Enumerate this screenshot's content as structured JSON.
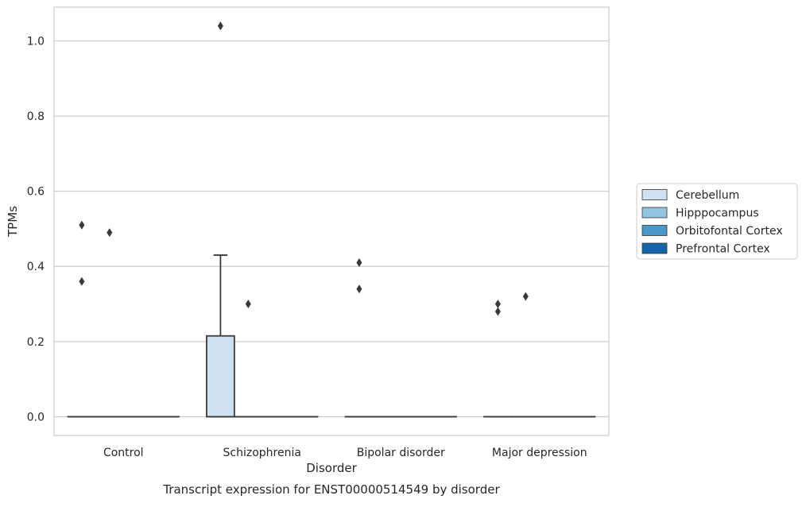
{
  "chart_data": {
    "type": "box",
    "caption": "Transcript expression for ENST00000514549 by disorder",
    "xlabel": "Disorder",
    "ylabel": "TPMs",
    "ylim": [
      -0.05,
      1.09
    ],
    "yticks": [
      0.0,
      0.2,
      0.4,
      0.6,
      0.8,
      1.0
    ],
    "ytick_labels": [
      "0.0",
      "0.2",
      "0.4",
      "0.6",
      "0.8",
      "1.0"
    ],
    "grid": "horizontal",
    "legend_position": "right",
    "categories": [
      "Control",
      "Schizophrenia",
      "Bipolar disorder",
      "Major depression"
    ],
    "series": [
      {
        "name": "Cerebellum",
        "color": "#d0e1f2",
        "boxes": [
          {
            "category": "Control",
            "q1": 0.0,
            "median": 0.0,
            "q3": 0.0,
            "whisker_low": 0.0,
            "whisker_high": 0.0,
            "outliers": [
              0.51,
              0.36
            ]
          },
          {
            "category": "Schizophrenia",
            "q1": 0.0,
            "median": 0.0,
            "q3": 0.215,
            "whisker_low": 0.0,
            "whisker_high": 0.43,
            "outliers": [
              1.04
            ]
          },
          {
            "category": "Bipolar disorder",
            "q1": 0.0,
            "median": 0.0,
            "q3": 0.0,
            "whisker_low": 0.0,
            "whisker_high": 0.0,
            "outliers": [
              0.41,
              0.34
            ]
          },
          {
            "category": "Major depression",
            "q1": 0.0,
            "median": 0.0,
            "q3": 0.0,
            "whisker_low": 0.0,
            "whisker_high": 0.0,
            "outliers": [
              0.3,
              0.28
            ]
          }
        ]
      },
      {
        "name": "Hipppocampus",
        "color": "#94c4df",
        "boxes": [
          {
            "category": "Control",
            "q1": 0.0,
            "median": 0.0,
            "q3": 0.0,
            "whisker_low": 0.0,
            "whisker_high": 0.0,
            "outliers": [
              0.49
            ]
          },
          {
            "category": "Schizophrenia",
            "q1": 0.0,
            "median": 0.0,
            "q3": 0.0,
            "whisker_low": 0.0,
            "whisker_high": 0.0,
            "outliers": [
              0.3
            ]
          },
          {
            "category": "Bipolar disorder",
            "q1": 0.0,
            "median": 0.0,
            "q3": 0.0,
            "whisker_low": 0.0,
            "whisker_high": 0.0,
            "outliers": []
          },
          {
            "category": "Major depression",
            "q1": 0.0,
            "median": 0.0,
            "q3": 0.0,
            "whisker_low": 0.0,
            "whisker_high": 0.0,
            "outliers": [
              0.32
            ]
          }
        ]
      },
      {
        "name": "Orbitofontal Cortex",
        "color": "#4a98c9",
        "boxes": [
          {
            "category": "Control",
            "q1": 0.0,
            "median": 0.0,
            "q3": 0.0,
            "whisker_low": 0.0,
            "whisker_high": 0.0,
            "outliers": []
          },
          {
            "category": "Schizophrenia",
            "q1": 0.0,
            "median": 0.0,
            "q3": 0.0,
            "whisker_low": 0.0,
            "whisker_high": 0.0,
            "outliers": []
          },
          {
            "category": "Bipolar disorder",
            "q1": 0.0,
            "median": 0.0,
            "q3": 0.0,
            "whisker_low": 0.0,
            "whisker_high": 0.0,
            "outliers": []
          },
          {
            "category": "Major depression",
            "q1": 0.0,
            "median": 0.0,
            "q3": 0.0,
            "whisker_low": 0.0,
            "whisker_high": 0.0,
            "outliers": []
          }
        ]
      },
      {
        "name": "Prefrontal Cortex",
        "color": "#1764ab",
        "boxes": [
          {
            "category": "Control",
            "q1": 0.0,
            "median": 0.0,
            "q3": 0.0,
            "whisker_low": 0.0,
            "whisker_high": 0.0,
            "outliers": []
          },
          {
            "category": "Schizophrenia",
            "q1": 0.0,
            "median": 0.0,
            "q3": 0.0,
            "whisker_low": 0.0,
            "whisker_high": 0.0,
            "outliers": []
          },
          {
            "category": "Bipolar disorder",
            "q1": 0.0,
            "median": 0.0,
            "q3": 0.0,
            "whisker_low": 0.0,
            "whisker_high": 0.0,
            "outliers": []
          },
          {
            "category": "Major depression",
            "q1": 0.0,
            "median": 0.0,
            "q3": 0.0,
            "whisker_low": 0.0,
            "whisker_high": 0.0,
            "outliers": []
          }
        ]
      }
    ]
  }
}
